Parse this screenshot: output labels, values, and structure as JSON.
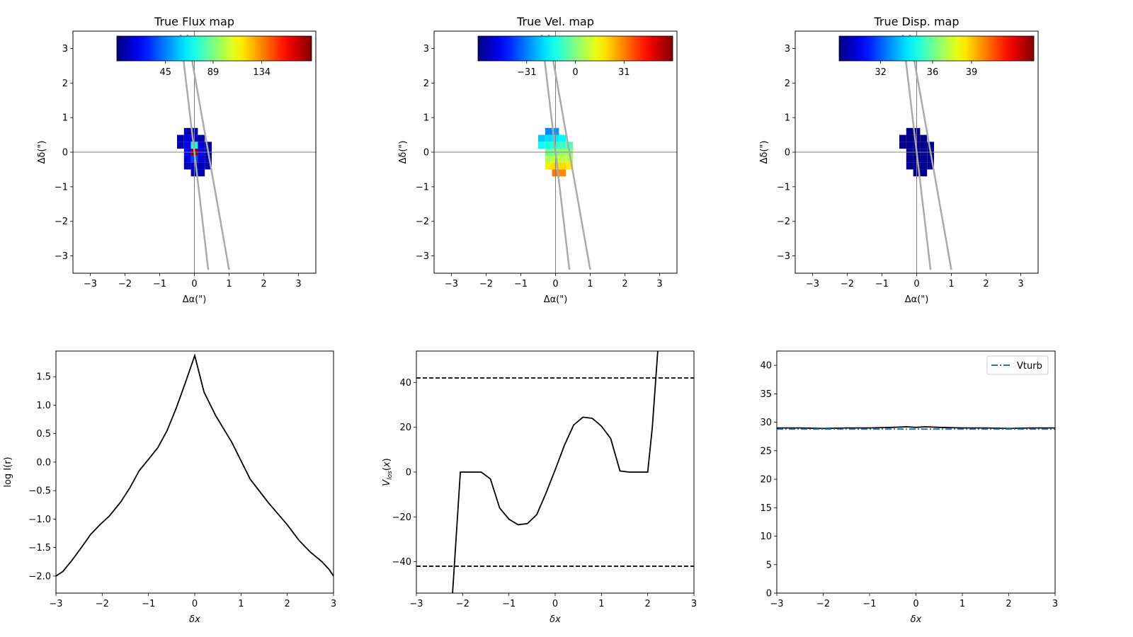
{
  "chart_data": [
    {
      "type": "heatmap",
      "title": "True Flux map",
      "xlabel": "Δα(\")",
      "ylabel": "Δδ(\")",
      "xlim": [
        -3.5,
        3.5
      ],
      "ylim": [
        -3.5,
        3.5
      ],
      "xticks": [
        -3,
        -2,
        -1,
        0,
        1,
        2,
        3
      ],
      "yticks": [
        -3,
        -2,
        -1,
        0,
        1,
        2,
        3
      ],
      "xtick_labels": [
        "−3",
        "−2",
        "−1",
        "0",
        "1",
        "2",
        "3"
      ],
      "ytick_labels": [
        "−3",
        "−2",
        "−1",
        "0",
        "1",
        "2",
        "3"
      ],
      "colorbar": {
        "cmap": "jet",
        "vmin": 0,
        "vmax": 180,
        "ticks": [
          45,
          89,
          134
        ],
        "tick_labels": [
          "45",
          "89",
          "134"
        ],
        "location": "top-inside"
      },
      "slit_lines": [
        {
          "x": [
            -0.4,
            0.4
          ],
          "y": [
            3.4,
            -3.4
          ]
        },
        {
          "x": [
            -0.2,
            1.0
          ],
          "y": [
            3.4,
            -3.4
          ]
        }
      ],
      "pixel_size": 0.2,
      "cells": [
        {
          "x": -0.2,
          "y": 0.6,
          "v": 8
        },
        {
          "x": 0.0,
          "y": 0.6,
          "v": 8
        },
        {
          "x": -0.4,
          "y": 0.4,
          "v": 8
        },
        {
          "x": -0.2,
          "y": 0.4,
          "v": 16
        },
        {
          "x": 0.0,
          "y": 0.4,
          "v": 14
        },
        {
          "x": 0.2,
          "y": 0.4,
          "v": 8
        },
        {
          "x": -0.4,
          "y": 0.2,
          "v": 8
        },
        {
          "x": -0.2,
          "y": 0.2,
          "v": 18
        },
        {
          "x": 0.0,
          "y": 0.2,
          "v": 70
        },
        {
          "x": 0.2,
          "y": 0.2,
          "v": 14
        },
        {
          "x": 0.4,
          "y": 0.2,
          "v": 8
        },
        {
          "x": -0.2,
          "y": 0.0,
          "v": 20
        },
        {
          "x": 0.0,
          "y": 0.0,
          "v": 178
        },
        {
          "x": 0.2,
          "y": 0.0,
          "v": 18
        },
        {
          "x": 0.4,
          "y": 0.0,
          "v": 8
        },
        {
          "x": -0.2,
          "y": -0.2,
          "v": 16
        },
        {
          "x": 0.0,
          "y": -0.2,
          "v": 34
        },
        {
          "x": 0.2,
          "y": -0.2,
          "v": 14
        },
        {
          "x": 0.4,
          "y": -0.2,
          "v": 8
        },
        {
          "x": -0.2,
          "y": -0.4,
          "v": 10
        },
        {
          "x": 0.0,
          "y": -0.4,
          "v": 12
        },
        {
          "x": 0.2,
          "y": -0.4,
          "v": 10
        },
        {
          "x": 0.4,
          "y": -0.4,
          "v": 8
        },
        {
          "x": 0.0,
          "y": -0.6,
          "v": 8
        },
        {
          "x": 0.2,
          "y": -0.6,
          "v": 8
        }
      ]
    },
    {
      "type": "heatmap",
      "title": "True Vel. map",
      "xlabel": "Δα(\")",
      "ylabel": "Δδ(\")",
      "xlim": [
        -3.5,
        3.5
      ],
      "ylim": [
        -3.5,
        3.5
      ],
      "xticks": [
        -3,
        -2,
        -1,
        0,
        1,
        2,
        3
      ],
      "yticks": [
        -3,
        -2,
        -1,
        0,
        1,
        2,
        3
      ],
      "xtick_labels": [
        "−3",
        "−2",
        "−1",
        "0",
        "1",
        "2",
        "3"
      ],
      "ytick_labels": [
        "−3",
        "−2",
        "−1",
        "0",
        "1",
        "2",
        "3"
      ],
      "colorbar": {
        "cmap": "jet",
        "vmin": -62,
        "vmax": 62,
        "ticks": [
          -31,
          0,
          31
        ],
        "tick_labels": [
          "−31",
          "0",
          "31"
        ],
        "location": "top-inside"
      },
      "slit_lines": [
        {
          "x": [
            -0.4,
            0.4
          ],
          "y": [
            3.4,
            -3.4
          ]
        },
        {
          "x": [
            -0.2,
            1.0
          ],
          "y": [
            3.4,
            -3.4
          ]
        }
      ],
      "pixel_size": 0.2,
      "cells": [
        {
          "x": -0.2,
          "y": 0.6,
          "v": -30
        },
        {
          "x": 0.0,
          "y": 0.6,
          "v": -28
        },
        {
          "x": -0.4,
          "y": 0.4,
          "v": -22
        },
        {
          "x": -0.2,
          "y": 0.4,
          "v": -20
        },
        {
          "x": 0.0,
          "y": 0.4,
          "v": -18
        },
        {
          "x": 0.2,
          "y": 0.4,
          "v": -16
        },
        {
          "x": -0.4,
          "y": 0.2,
          "v": -14
        },
        {
          "x": -0.2,
          "y": 0.2,
          "v": -12
        },
        {
          "x": 0.0,
          "y": 0.2,
          "v": -10
        },
        {
          "x": 0.2,
          "y": 0.2,
          "v": -8
        },
        {
          "x": 0.4,
          "y": 0.2,
          "v": -6
        },
        {
          "x": -0.2,
          "y": 0.0,
          "v": -2
        },
        {
          "x": 0.0,
          "y": 0.0,
          "v": 0
        },
        {
          "x": 0.2,
          "y": 0.0,
          "v": 2
        },
        {
          "x": 0.4,
          "y": 0.0,
          "v": 2
        },
        {
          "x": -0.2,
          "y": -0.2,
          "v": 6
        },
        {
          "x": 0.0,
          "y": -0.2,
          "v": 8
        },
        {
          "x": 0.2,
          "y": -0.2,
          "v": 8
        },
        {
          "x": 0.4,
          "y": -0.2,
          "v": 8
        },
        {
          "x": -0.2,
          "y": -0.4,
          "v": 18
        },
        {
          "x": 0.0,
          "y": -0.4,
          "v": 20
        },
        {
          "x": 0.2,
          "y": -0.4,
          "v": 20
        },
        {
          "x": 0.4,
          "y": -0.4,
          "v": 18
        },
        {
          "x": 0.0,
          "y": -0.6,
          "v": 32
        },
        {
          "x": 0.2,
          "y": -0.6,
          "v": 30
        }
      ]
    },
    {
      "type": "heatmap",
      "title": "True Disp. map",
      "xlabel": "Δα(\")",
      "ylabel": "Δδ(\")",
      "xlim": [
        -3.5,
        3.5
      ],
      "ylim": [
        -3.5,
        3.5
      ],
      "xticks": [
        -3,
        -2,
        -1,
        0,
        1,
        2,
        3
      ],
      "yticks": [
        -3,
        -2,
        -1,
        0,
        1,
        2,
        3
      ],
      "xtick_labels": [
        "−3",
        "−2",
        "−1",
        "0",
        "1",
        "2",
        "3"
      ],
      "ytick_labels": [
        "−3",
        "−2",
        "−1",
        "0",
        "1",
        "2",
        "3"
      ],
      "colorbar": {
        "cmap": "jet",
        "vmin": 28.8,
        "vmax": 43.8,
        "ticks": [
          32,
          36,
          39
        ],
        "tick_labels": [
          "32",
          "36",
          "39"
        ],
        "location": "top-inside"
      },
      "slit_lines": [
        {
          "x": [
            -0.4,
            0.4
          ],
          "y": [
            3.4,
            -3.4
          ]
        },
        {
          "x": [
            -0.2,
            1.0
          ],
          "y": [
            3.4,
            -3.4
          ]
        }
      ],
      "pixel_size": 0.2,
      "cells": [
        {
          "x": -0.2,
          "y": 0.6,
          "v": 29
        },
        {
          "x": 0.0,
          "y": 0.6,
          "v": 29
        },
        {
          "x": -0.4,
          "y": 0.4,
          "v": 29
        },
        {
          "x": -0.2,
          "y": 0.4,
          "v": 29
        },
        {
          "x": 0.0,
          "y": 0.4,
          "v": 29
        },
        {
          "x": 0.2,
          "y": 0.4,
          "v": 29
        },
        {
          "x": -0.4,
          "y": 0.2,
          "v": 29
        },
        {
          "x": -0.2,
          "y": 0.2,
          "v": 29
        },
        {
          "x": 0.0,
          "y": 0.2,
          "v": 29
        },
        {
          "x": 0.2,
          "y": 0.2,
          "v": 29
        },
        {
          "x": 0.4,
          "y": 0.2,
          "v": 29
        },
        {
          "x": -0.2,
          "y": 0.0,
          "v": 29
        },
        {
          "x": 0.0,
          "y": 0.0,
          "v": 29
        },
        {
          "x": 0.2,
          "y": 0.0,
          "v": 29
        },
        {
          "x": 0.4,
          "y": 0.0,
          "v": 29
        },
        {
          "x": -0.2,
          "y": -0.2,
          "v": 29
        },
        {
          "x": 0.0,
          "y": -0.2,
          "v": 29
        },
        {
          "x": 0.2,
          "y": -0.2,
          "v": 29
        },
        {
          "x": 0.4,
          "y": -0.2,
          "v": 29
        },
        {
          "x": -0.2,
          "y": -0.4,
          "v": 29
        },
        {
          "x": 0.0,
          "y": -0.4,
          "v": 29
        },
        {
          "x": 0.2,
          "y": -0.4,
          "v": 29
        },
        {
          "x": 0.4,
          "y": -0.4,
          "v": 29
        },
        {
          "x": 0.0,
          "y": -0.6,
          "v": 29
        },
        {
          "x": 0.2,
          "y": -0.6,
          "v": 29
        }
      ]
    },
    {
      "type": "line",
      "title": "",
      "xlabel": "δx",
      "ylabel": "log I(r)",
      "xlim": [
        -3,
        3
      ],
      "ylim": [
        -2.3,
        1.95
      ],
      "xticks": [
        -3,
        -2,
        -1,
        0,
        1,
        2,
        3
      ],
      "yticks": [
        -2.0,
        -1.5,
        -1.0,
        -0.5,
        0.0,
        0.5,
        1.0,
        1.5
      ],
      "xtick_labels": [
        "−3",
        "−2",
        "−1",
        "0",
        "1",
        "2",
        "3"
      ],
      "ytick_labels": [
        "−2.0",
        "−1.5",
        "−1.0",
        "−0.5",
        "0.0",
        "0.5",
        "1.0",
        "1.5"
      ],
      "series": [
        {
          "color": "#000000",
          "style": "solid",
          "x": [
            -3.0,
            -2.85,
            -2.65,
            -2.45,
            -2.25,
            -2.05,
            -1.85,
            -1.6,
            -1.4,
            -1.2,
            -1.0,
            -0.8,
            -0.6,
            -0.4,
            -0.2,
            0.0,
            0.2,
            0.45,
            0.8,
            1.2,
            1.6,
            2.0,
            2.25,
            2.5,
            2.75,
            2.9,
            3.0
          ],
          "y": [
            -2.0,
            -1.92,
            -1.72,
            -1.5,
            -1.27,
            -1.1,
            -0.95,
            -0.7,
            -0.45,
            -0.15,
            0.05,
            0.25,
            0.55,
            0.95,
            1.4,
            1.87,
            1.23,
            0.82,
            0.35,
            -0.3,
            -0.72,
            -1.1,
            -1.37,
            -1.58,
            -1.75,
            -1.88,
            -2.0
          ]
        }
      ]
    },
    {
      "type": "line",
      "title": "",
      "xlabel": "δx",
      "ylabel": "V_los(x)",
      "xlim": [
        -3,
        3
      ],
      "ylim": [
        -54,
        54
      ],
      "xticks": [
        -3,
        -2,
        -1,
        0,
        1,
        2,
        3
      ],
      "yticks": [
        -40,
        -20,
        0,
        20,
        40
      ],
      "xtick_labels": [
        "−3",
        "−2",
        "−1",
        "0",
        "1",
        "2",
        "3"
      ],
      "ytick_labels": [
        "−40",
        "−20",
        "0",
        "20",
        "40"
      ],
      "series": [
        {
          "color": "#000000",
          "style": "solid",
          "x": [
            -2.22,
            -2.05,
            -1.6,
            -1.4,
            -1.2,
            -1.0,
            -0.8,
            -0.6,
            -0.4,
            -0.2,
            0.0,
            0.2,
            0.4,
            0.6,
            0.8,
            1.0,
            1.2,
            1.4,
            1.6,
            1.8,
            2.0,
            2.1,
            2.22
          ],
          "y": [
            -54.5,
            0,
            0,
            -3,
            -16,
            -21,
            -23.5,
            -23,
            -19,
            -9.5,
            1,
            12,
            21,
            24.5,
            24,
            20.5,
            15,
            0.5,
            0,
            0,
            0,
            20,
            54.5
          ]
        },
        {
          "color": "#000000",
          "style": "dashed",
          "x": [
            -3,
            3
          ],
          "y": [
            42,
            42
          ]
        },
        {
          "color": "#000000",
          "style": "dashed",
          "x": [
            -3,
            3
          ],
          "y": [
            -42,
            -42
          ]
        }
      ]
    },
    {
      "type": "line",
      "title": "",
      "xlabel": "δx",
      "ylabel": "",
      "xlim": [
        -3,
        3
      ],
      "ylim": [
        0,
        42.5
      ],
      "xticks": [
        -3,
        -2,
        -1,
        0,
        1,
        2,
        3
      ],
      "yticks": [
        0,
        5,
        10,
        15,
        20,
        25,
        30,
        35,
        40
      ],
      "xtick_labels": [
        "−3",
        "−2",
        "−1",
        "0",
        "1",
        "2",
        "3"
      ],
      "ytick_labels": [
        "0",
        "5",
        "10",
        "15",
        "20",
        "25",
        "30",
        "35",
        "40"
      ],
      "legend": {
        "entries": [
          "Vturb"
        ],
        "location": "top-right"
      },
      "series": [
        {
          "color": "#000000",
          "style": "solid",
          "x": [
            -3,
            -2.5,
            -2,
            -1.5,
            -1,
            -0.5,
            -0.2,
            0,
            0.2,
            0.5,
            1,
            1.5,
            2,
            2.5,
            3
          ],
          "y": [
            29.0,
            29.0,
            28.9,
            29.0,
            29.0,
            29.1,
            29.2,
            29.1,
            29.2,
            29.1,
            29.0,
            29.0,
            28.9,
            29.0,
            29.0
          ]
        },
        {
          "name": "Vturb",
          "color": "#1f77b4",
          "style": "dashdot",
          "x": [
            -3,
            3
          ],
          "y": [
            28.8,
            28.8
          ]
        }
      ]
    }
  ]
}
